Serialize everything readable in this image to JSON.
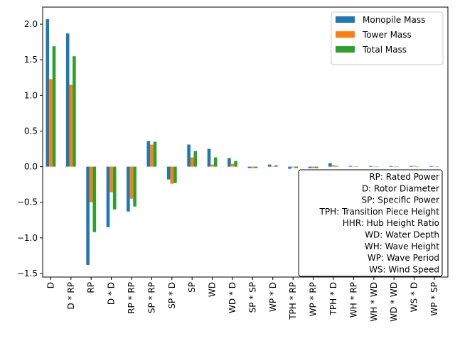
{
  "chart_data": {
    "type": "bar",
    "categories": [
      "D",
      "D * RP",
      "RP",
      "D * D",
      "RP * RP",
      "SP * RP",
      "SP * D",
      "SP",
      "WD",
      "WD * D",
      "SP * SP",
      "WP * D",
      "TPH * RP",
      "WP * RP",
      "TPH * D",
      "WH * RP",
      "WH * WD",
      "WD * WD",
      "WS * D",
      "WP * SP"
    ],
    "series": [
      {
        "name": "Monopile Mass",
        "color": "#1f77b4",
        "values": [
          2.07,
          1.87,
          -1.38,
          -0.85,
          -0.63,
          0.36,
          -0.18,
          0.31,
          0.25,
          0.12,
          -0.02,
          0.03,
          -0.03,
          -0.02,
          0.05,
          0.01,
          0.01,
          0.01,
          0.01,
          0.01
        ]
      },
      {
        "name": "Tower Mass",
        "color": "#ff7f0e",
        "values": [
          1.23,
          1.15,
          -0.5,
          -0.36,
          -0.45,
          0.31,
          -0.24,
          0.13,
          0.03,
          0.04,
          -0.02,
          0.0,
          -0.01,
          -0.02,
          0.02,
          0.0,
          0.0,
          0.0,
          0.01,
          0.0
        ]
      },
      {
        "name": "Total Mass",
        "color": "#2ca02c",
        "values": [
          1.69,
          1.55,
          -0.92,
          -0.6,
          -0.56,
          0.35,
          -0.23,
          0.22,
          0.13,
          0.08,
          -0.02,
          0.02,
          -0.02,
          -0.02,
          0.01,
          0.0,
          0.0,
          0.0,
          0.0,
          0.0
        ]
      }
    ],
    "ylim": [
      -1.55,
      2.24
    ],
    "yticks": [
      2.0,
      1.5,
      1.0,
      0.5,
      0.0,
      -0.5,
      -1.0,
      -1.5
    ],
    "ytick_labels": [
      "2.0",
      "1.5",
      "1.0",
      "0.5",
      "0.0",
      "−0.5",
      "−1.0",
      "−1.5"
    ],
    "legend_position": "upper right",
    "abbreviations": [
      "RP: Rated Power",
      "D: Rotor Diameter",
      "SP: Specific Power",
      "TPH: Transition Piece Height",
      "HHR: Hub Height Ratio",
      "WD: Water Depth",
      "WH: Wave Height",
      "WP: Wave Period",
      "WS: Wind Speed"
    ],
    "grid": false
  }
}
